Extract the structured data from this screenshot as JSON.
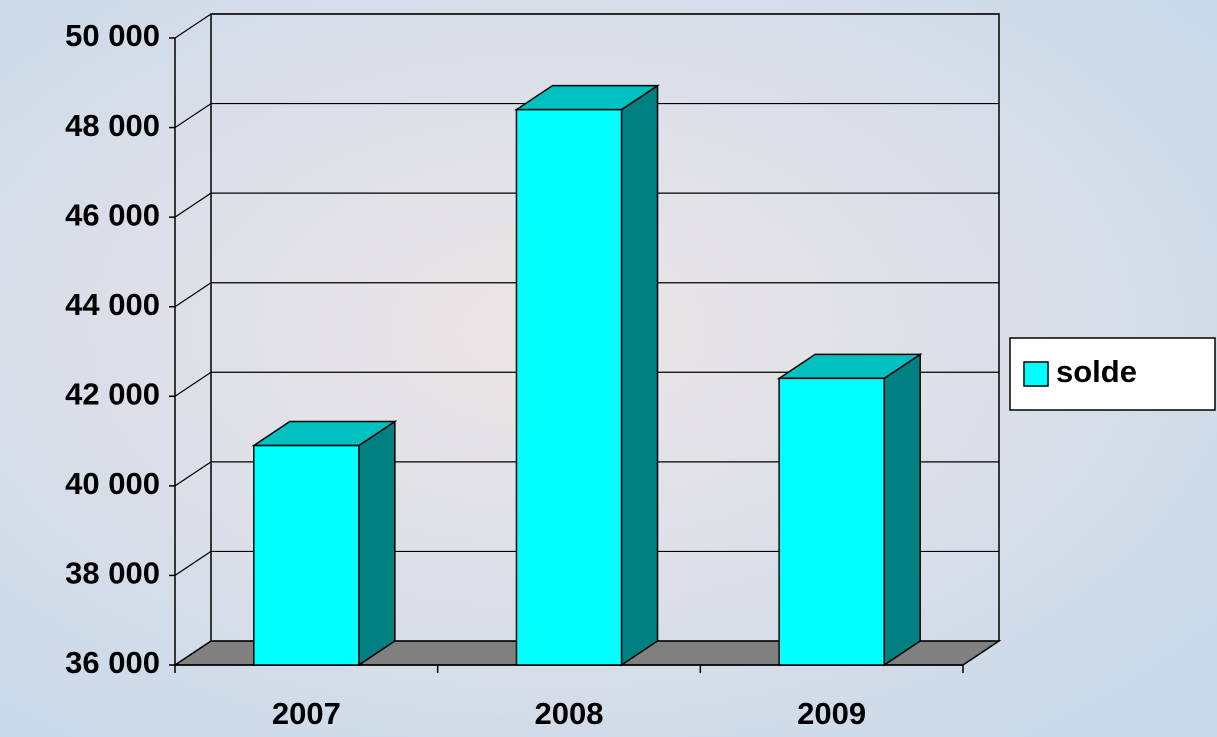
{
  "chart_data": {
    "type": "bar3d",
    "categories": [
      "2007",
      "2008",
      "2009"
    ],
    "series": [
      {
        "name": "solde",
        "color": "#00ffff",
        "values": [
          40900,
          48400,
          42400
        ]
      }
    ],
    "ylim": [
      36000,
      50000
    ],
    "yticks": [
      {
        "value": 36000,
        "label": "36 000"
      },
      {
        "value": 38000,
        "label": "38 000"
      },
      {
        "value": 40000,
        "label": "40 000"
      },
      {
        "value": 42000,
        "label": "42 000"
      },
      {
        "value": 44000,
        "label": "44 000"
      },
      {
        "value": 46000,
        "label": "46 000"
      },
      {
        "value": 48000,
        "label": "48 000"
      },
      {
        "value": 50000,
        "label": "50 000"
      }
    ],
    "grid": true,
    "legend": "right"
  }
}
